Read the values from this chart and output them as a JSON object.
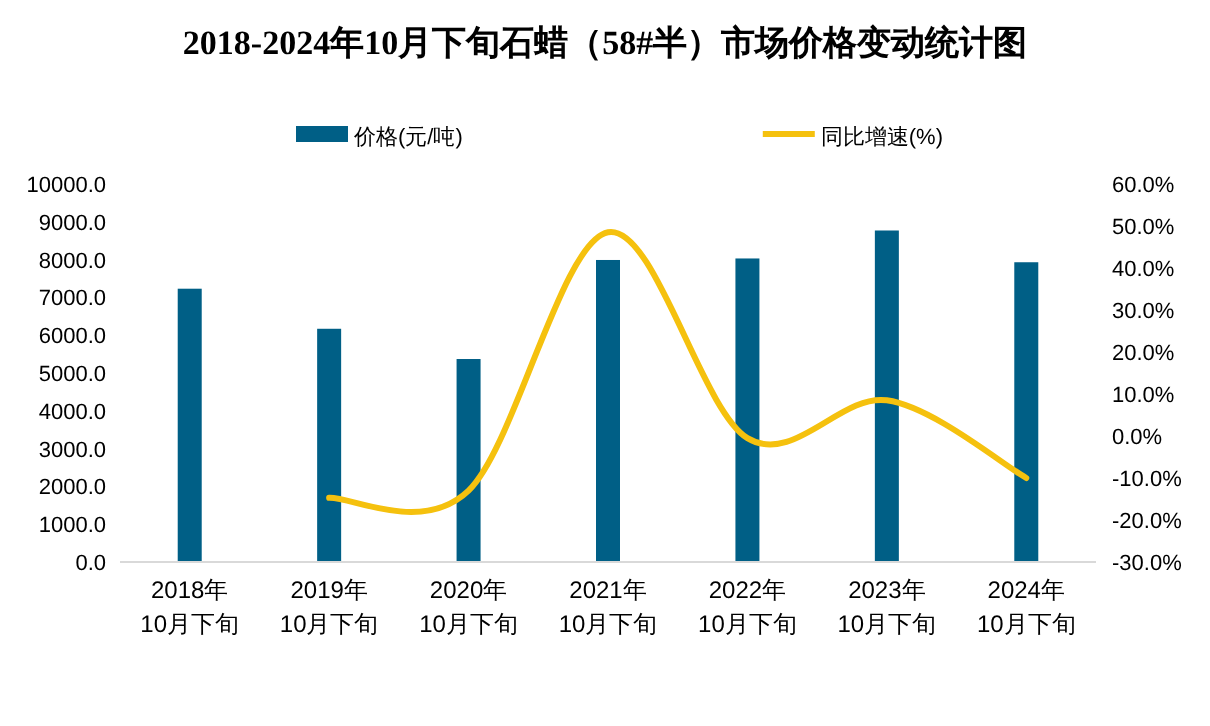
{
  "chart_data": {
    "type": "bar",
    "title": "2018-2024年10月下旬石蜡（58#半）市场价格变动统计图",
    "categories": [
      "2018年\n10月下旬",
      "2019年\n10月下旬",
      "2020年\n10月下旬",
      "2021年\n10月下旬",
      "2022年\n10月下旬",
      "2023年\n10月下旬",
      "2024年\n10月下旬"
    ],
    "series": [
      {
        "name": "价格(元/吨)",
        "color": "#005f86",
        "values": [
          7230,
          6170,
          5370,
          7990,
          8030,
          8770,
          7930
        ]
      },
      {
        "name": "同比增速(%)",
        "type": "line",
        "axis": "y2",
        "color": "#f5c10e",
        "values": [
          null,
          -14.7,
          -13.0,
          48.5,
          -0.5,
          8.5,
          -10.0
        ]
      }
    ],
    "ylim": [
      0,
      10000
    ],
    "yticks": [
      {
        "value": 0,
        "label": "0.0"
      },
      {
        "value": 1000,
        "label": "1000.0"
      },
      {
        "value": 2000,
        "label": "2000.0"
      },
      {
        "value": 3000,
        "label": "3000.0"
      },
      {
        "value": 4000,
        "label": "4000.0"
      },
      {
        "value": 5000,
        "label": "5000.0"
      },
      {
        "value": 6000,
        "label": "6000.0"
      },
      {
        "value": 7000,
        "label": "7000.0"
      },
      {
        "value": 8000,
        "label": "8000.0"
      },
      {
        "value": 9000,
        "label": "9000.0"
      },
      {
        "value": 10000,
        "label": "10000.0"
      }
    ],
    "y2lim": [
      -30,
      60
    ],
    "y2ticks": [
      {
        "value": -30,
        "label": "-30.0%"
      },
      {
        "value": -20,
        "label": "-20.0%"
      },
      {
        "value": -10,
        "label": "-10.0%"
      },
      {
        "value": 0,
        "label": "0.0%"
      },
      {
        "value": 10,
        "label": "10.0%"
      },
      {
        "value": 20,
        "label": "20.0%"
      },
      {
        "value": 30,
        "label": "30.0%"
      },
      {
        "value": 40,
        "label": "40.0%"
      },
      {
        "value": 50,
        "label": "50.0%"
      },
      {
        "value": 60,
        "label": "60.0%"
      }
    ],
    "legend": "top",
    "grid": false,
    "marker": "none",
    "line_style": "solid"
  }
}
